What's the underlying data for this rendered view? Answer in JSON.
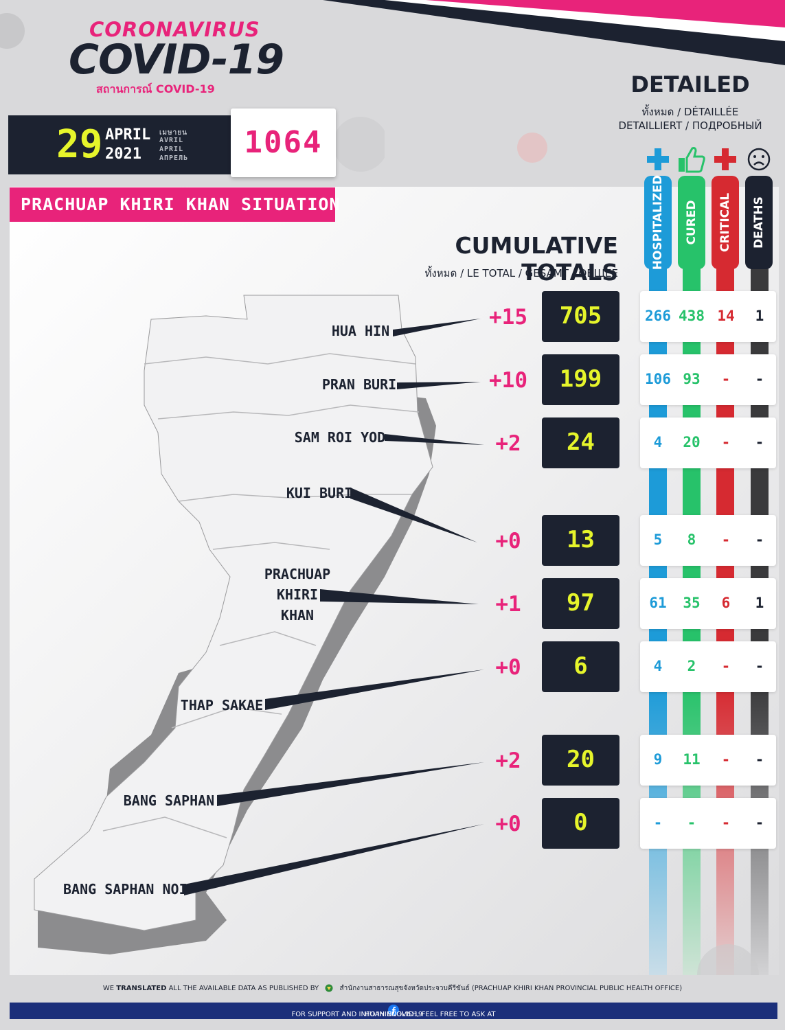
{
  "header": {
    "corona": "CORONAVIRUS",
    "covid": "COVID-19",
    "thai_sub": "สถานการณ์ COVID-19"
  },
  "date": {
    "day": "29",
    "month": "APRIL",
    "year": "2021",
    "month_langs": [
      "เมษายน",
      "AVRIL",
      "APRIL",
      "АПРЕЛЬ"
    ]
  },
  "grand_total": "1064",
  "situation_label": "PRACHUAP KHIRI KHAN SITUATION",
  "detailed": {
    "title": "DETAILED",
    "sub1": "ทั้งหมด / DÉTAILLÉE",
    "sub2": "DETAILLIERT / ПОДРОБНЫЙ",
    "columns": [
      {
        "label": "HOSPITALIZED",
        "color": "#1d9bd8",
        "icon": "plus-icon"
      },
      {
        "label": "CURED",
        "color": "#27c26a",
        "icon": "thumbs-up-icon"
      },
      {
        "label": "CRITICAL",
        "color": "#d62a31",
        "icon": "plus-icon"
      },
      {
        "label": "DEATHS",
        "color": "#1c2230",
        "icon": "sad-face-icon"
      }
    ]
  },
  "cumulative": {
    "title": "CUMULATIVE TOTALS",
    "sub": "ทั้งหมด / LE TOTAL / GESAMT / ОБЩЕЕ"
  },
  "rows": [
    {
      "district": "HUA HIN",
      "delta": "+15",
      "total": "705",
      "hospitalized": "266",
      "cured": "438",
      "critical": "14",
      "deaths": "1"
    },
    {
      "district": "PRAN BURI",
      "delta": "+10",
      "total": "199",
      "hospitalized": "106",
      "cured": "93",
      "critical": "-",
      "deaths": "-"
    },
    {
      "district": "SAM ROI YOD",
      "delta": "+2",
      "total": "24",
      "hospitalized": "4",
      "cured": "20",
      "critical": "-",
      "deaths": "-"
    },
    {
      "district": "KUI BURI",
      "delta": "+0",
      "total": "13",
      "hospitalized": "5",
      "cured": "8",
      "critical": "-",
      "deaths": "-"
    },
    {
      "district_lines": [
        "PRACHUAP",
        "KHIRI",
        "KHAN"
      ],
      "delta": "+1",
      "total": "97",
      "hospitalized": "61",
      "cured": "35",
      "critical": "6",
      "deaths": "1"
    },
    {
      "district": "THAP SAKAE",
      "delta": "+0",
      "total": "6",
      "hospitalized": "4",
      "cured": "2",
      "critical": "-",
      "deaths": "-"
    },
    {
      "district": "BANG SAPHAN",
      "delta": "+2",
      "total": "20",
      "hospitalized": "9",
      "cured": "11",
      "critical": "-",
      "deaths": "-"
    },
    {
      "district": "BANG SAPHAN NOI",
      "delta": "+0",
      "total": "0",
      "hospitalized": "-",
      "cured": "-",
      "critical": "-",
      "deaths": "-"
    }
  ],
  "footer": {
    "line1_pre": "WE ",
    "line1_bold": "TRANSLATED",
    "line1_post": " ALL THE AVAILABLE DATA AS PUBLISHED BY",
    "line1_org": "สำนักงานสาธารณสุขจังหวัดประจวบคีรีขันธ์ (PRACHUAP KHIRI KHAN PROVINCIAL PUBLIC HEALTH OFFICE)",
    "line2": "FOR SUPPORT AND INFO IN ENGLISH, FEEL FREE TO ASK AT",
    "handle": "HUAHINCOVID19"
  }
}
